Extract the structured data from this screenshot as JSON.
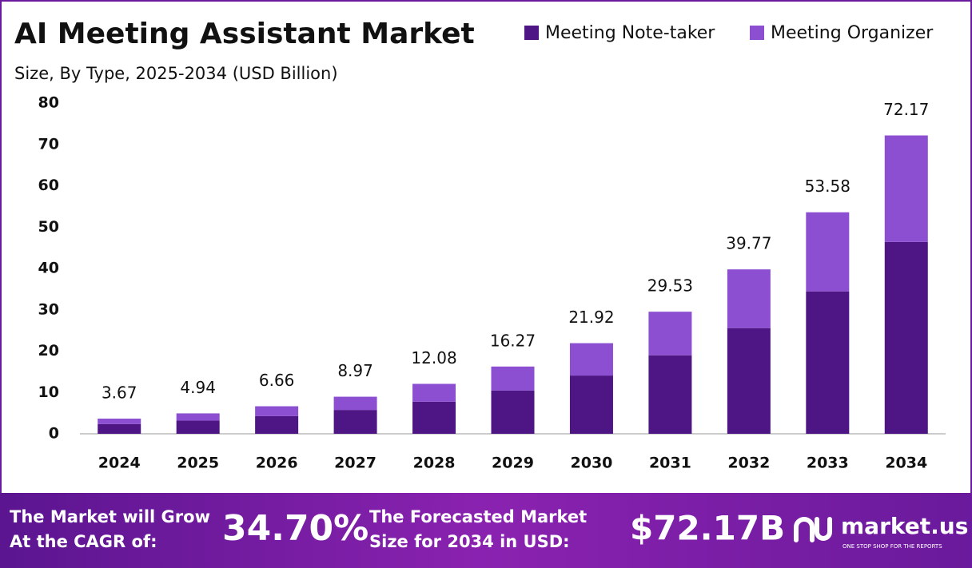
{
  "chart_data": {
    "type": "stacked_bar",
    "title": "AI Meeting Assistant Market",
    "subtitle": "Size, By Type, 2025-2034 (USD Billion)",
    "categories": [
      "2024",
      "2025",
      "2026",
      "2027",
      "2028",
      "2029",
      "2030",
      "2031",
      "2032",
      "2033",
      "2034"
    ],
    "series": [
      {
        "name": "Meeting Note-taker",
        "color": "#4e1585",
        "values": [
          2.36,
          3.18,
          4.28,
          5.77,
          7.77,
          10.46,
          14.09,
          18.99,
          25.57,
          34.45,
          46.4
        ]
      },
      {
        "name": "Meeting Organizer",
        "color": "#8c4fd1",
        "values": [
          1.31,
          1.76,
          2.38,
          3.2,
          4.31,
          5.81,
          7.83,
          10.54,
          14.2,
          19.13,
          25.77
        ]
      }
    ],
    "totals": [
      3.67,
      4.94,
      6.66,
      8.97,
      12.08,
      16.27,
      21.92,
      29.53,
      39.77,
      53.58,
      72.17
    ],
    "ylim": [
      0,
      80
    ],
    "yticks": [
      0,
      10,
      20,
      30,
      40,
      50,
      60,
      70,
      80
    ],
    "grid": false,
    "legend": "top-right"
  },
  "footer": {
    "cagr_text": [
      "The Market will Grow",
      "At the CAGR of:"
    ],
    "cagr_value": "34.70%",
    "forecast_text": [
      "The Forecasted Market",
      "Size for 2034 in USD:"
    ],
    "forecast_value": "$72.17B",
    "brand": "market.us",
    "tagline": "ONE STOP SHOP FOR THE REPORTS"
  }
}
